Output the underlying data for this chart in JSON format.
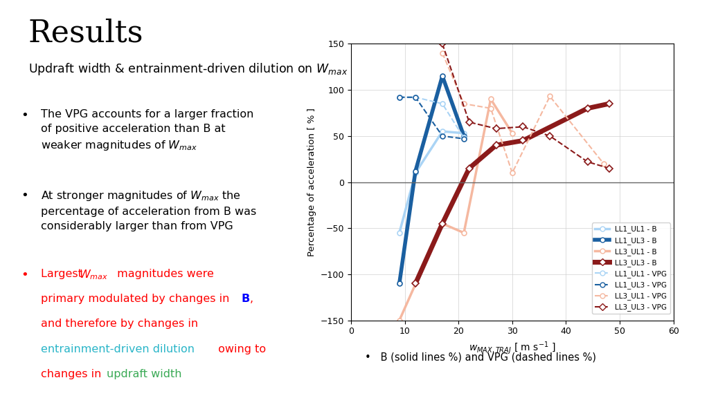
{
  "title_main": "Results",
  "title_sub": "Updraft width & entrainment-driven dilution on $W_{max}$",
  "footnote": "B (solid lines %) and VPG (dashed lines %)",
  "xlim": [
    0,
    60
  ],
  "ylim": [
    -150,
    150
  ],
  "xlabel": "$w_{MAX, TRAJ}$ [ m s$^{-1}$ ]",
  "ylabel": "Percentage of acceleration [ % ]",
  "xticks": [
    0,
    10,
    20,
    30,
    40,
    50,
    60
  ],
  "yticks": [
    -150,
    -100,
    -50,
    0,
    50,
    100,
    150
  ],
  "series": {
    "LL1_UL1_B": {
      "x": [
        9,
        12,
        17,
        21
      ],
      "y": [
        -55,
        10,
        55,
        53
      ],
      "color": "#aad4f5",
      "linewidth": 2.5,
      "linestyle": "solid",
      "marker": "o",
      "label": "LL1_UL1 - B"
    },
    "LL1_UL3_B": {
      "x": [
        9,
        12,
        17,
        21
      ],
      "y": [
        -110,
        12,
        115,
        50
      ],
      "color": "#1a5fa0",
      "linewidth": 4,
      "linestyle": "solid",
      "marker": "o",
      "label": "LL1_UL3 - B"
    },
    "LL3_UL1_B": {
      "x": [
        9,
        17,
        21,
        26,
        30
      ],
      "y": [
        -150,
        -45,
        -55,
        90,
        53
      ],
      "color": "#f5b8a0",
      "linewidth": 2.5,
      "linestyle": "solid",
      "marker": "o",
      "label": "LL3_UL1 - B"
    },
    "LL3_UL3_B": {
      "x": [
        12,
        17,
        22,
        27,
        32,
        44,
        48
      ],
      "y": [
        -110,
        -45,
        15,
        40,
        45,
        80,
        85
      ],
      "color": "#8b1a1a",
      "linewidth": 5,
      "linestyle": "solid",
      "marker": "D",
      "label": "LL3_UL3 - B"
    },
    "LL1_UL1_VPG": {
      "x": [
        9,
        12,
        17,
        21
      ],
      "y": [
        92,
        92,
        85,
        48
      ],
      "color": "#aad4f5",
      "linewidth": 1.5,
      "linestyle": "dashed",
      "marker": "o",
      "label": "LL1_UL1 - VPG"
    },
    "LL1_UL3_VPG": {
      "x": [
        9,
        12,
        17,
        21
      ],
      "y": [
        92,
        92,
        50,
        47
      ],
      "color": "#1a5fa0",
      "linewidth": 1.5,
      "linestyle": "dashed",
      "marker": "o",
      "label": "LL1_UL3 - VPG"
    },
    "LL3_UL1_VPG": {
      "x": [
        17,
        21,
        26,
        30,
        37,
        47
      ],
      "y": [
        140,
        85,
        80,
        10,
        93,
        20
      ],
      "color": "#f5b8a0",
      "linewidth": 1.5,
      "linestyle": "dashed",
      "marker": "o",
      "label": "LL3_UL1 - VPG"
    },
    "LL3_UL3_VPG": {
      "x": [
        17,
        22,
        27,
        32,
        37,
        44,
        48
      ],
      "y": [
        150,
        65,
        58,
        60,
        50,
        22,
        15
      ],
      "color": "#8b1a1a",
      "linewidth": 1.5,
      "linestyle": "dashed",
      "marker": "D",
      "label": "LL3_UL3 - VPG"
    }
  },
  "legend_colors": [
    "#aad4f5",
    "#1a5fa0",
    "#f5b8a0",
    "#8b1a1a"
  ],
  "legend_labels_b": [
    "LL1_UL1 - B",
    "LL1_UL3 - B",
    "LL3_UL1 - B",
    "LL3_UL3 - B"
  ],
  "legend_labels_vpg": [
    "LL1_UL1 - VPG",
    "LL1_UL3 - VPG",
    "LL3_UL1 - VPG",
    "LL3_UL3 - VPG"
  ],
  "legend_markers": [
    "o",
    "o",
    "o",
    "D"
  ],
  "legend_lw_b": [
    2.5,
    4,
    2.5,
    5
  ]
}
